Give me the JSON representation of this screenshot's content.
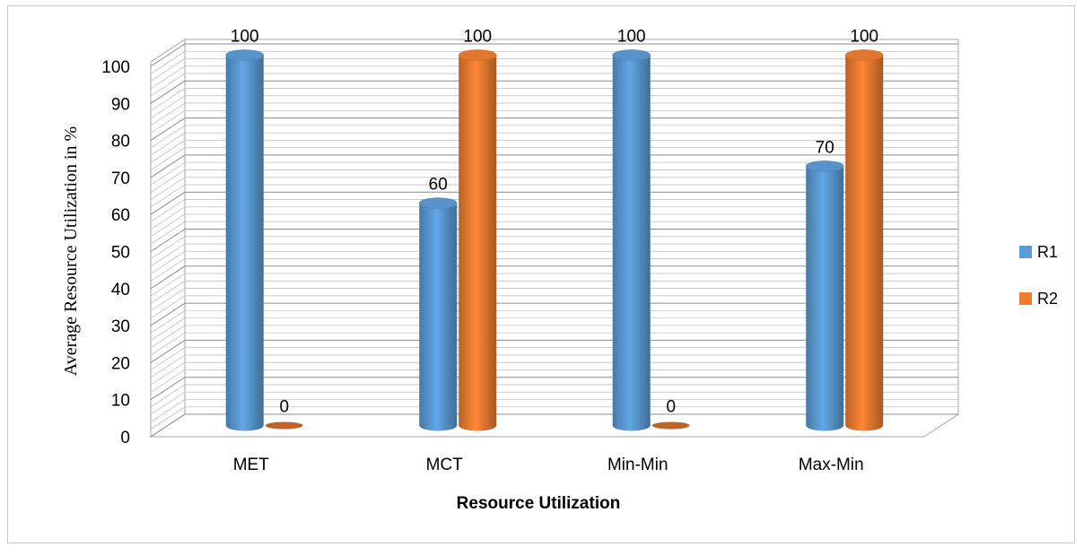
{
  "chart_data": {
    "type": "bar",
    "categories": [
      "MET",
      "MCT",
      "Min-Min",
      "Max-Min"
    ],
    "series": [
      {
        "name": "R1",
        "values": [
          100,
          60,
          100,
          70
        ],
        "color": "#5B9BD5"
      },
      {
        "name": "R2",
        "values": [
          0,
          100,
          0,
          100
        ],
        "color": "#ED7D31"
      }
    ],
    "xlabel": "Resource Utilization",
    "ylabel": "Average Resource Utilization in %",
    "ylim": [
      0,
      100
    ],
    "yticks": [
      0,
      10,
      20,
      30,
      40,
      50,
      60,
      70,
      80,
      90,
      100
    ],
    "grid": true,
    "style": "3d-cylinder",
    "legend_position": "right"
  }
}
